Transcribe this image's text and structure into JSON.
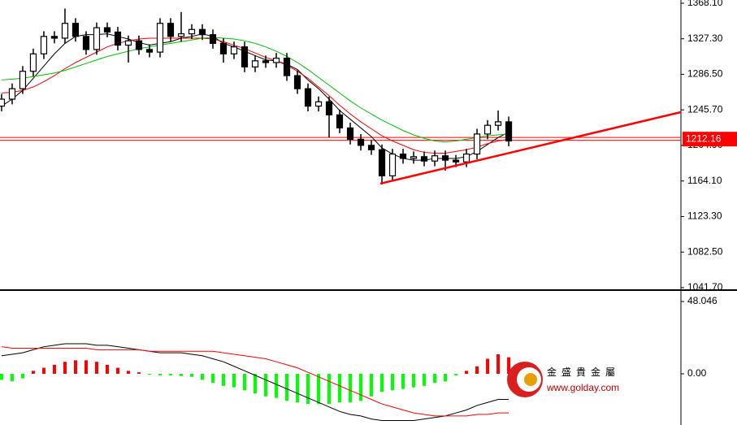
{
  "chart_data": [
    {
      "type": "candlestick",
      "ylim": [
        1039.8,
        1371.8
      ],
      "xlim": [
        -0.15,
        64.3
      ],
      "yticks": [
        {
          "value": 1368.1,
          "label": "1368.10"
        },
        {
          "value": 1327.3,
          "label": "1327.30"
        },
        {
          "value": 1286.5,
          "label": "1286.50"
        },
        {
          "value": 1245.7,
          "label": "1245.70"
        },
        {
          "value": 1204.9,
          "label": "1204.90"
        },
        {
          "value": 1164.1,
          "label": "1164.10"
        },
        {
          "value": 1123.3,
          "label": "1123.30"
        },
        {
          "value": 1082.5,
          "label": "1082.50"
        },
        {
          "value": 1041.7,
          "label": "1041.70"
        }
      ],
      "open": [
        1250,
        1258,
        1270,
        1290,
        1310,
        1330,
        1328,
        1345,
        1330,
        1315,
        1340,
        1335,
        1320,
        1325,
        1315,
        1312,
        1345,
        1330,
        1333,
        1338,
        1332,
        1322,
        1310,
        1318,
        1295,
        1302,
        1300,
        1305,
        1285,
        1270,
        1250,
        1255,
        1240,
        1225,
        1212,
        1205,
        1200,
        1170,
        1195,
        1190,
        1192,
        1187,
        1193,
        1188,
        1186,
        1195,
        1218,
        1228,
        1232
      ],
      "high": [
        1264,
        1276,
        1296,
        1316,
        1336,
        1336,
        1362,
        1351,
        1336,
        1346,
        1346,
        1341,
        1331,
        1331,
        1321,
        1351,
        1351,
        1358,
        1344,
        1344,
        1338,
        1328,
        1324,
        1324,
        1308,
        1308,
        1311,
        1311,
        1291,
        1276,
        1261,
        1261,
        1246,
        1231,
        1218,
        1211,
        1206,
        1201,
        1201,
        1198,
        1198,
        1199,
        1199,
        1194,
        1201,
        1224,
        1234,
        1245,
        1238
      ],
      "low": [
        1244,
        1252,
        1264,
        1284,
        1304,
        1322,
        1322,
        1324,
        1309,
        1309,
        1329,
        1314,
        1300,
        1309,
        1306,
        1306,
        1324,
        1324,
        1327,
        1326,
        1316,
        1300,
        1304,
        1289,
        1289,
        1294,
        1294,
        1279,
        1264,
        1244,
        1244,
        1214,
        1219,
        1206,
        1199,
        1194,
        1160,
        1164,
        1184,
        1184,
        1181,
        1181,
        1176,
        1180,
        1180,
        1189,
        1212,
        1222,
        1204
      ],
      "close": [
        1258,
        1270,
        1290,
        1310,
        1330,
        1328,
        1345,
        1330,
        1315,
        1340,
        1335,
        1320,
        1325,
        1315,
        1312,
        1345,
        1330,
        1333,
        1338,
        1332,
        1322,
        1310,
        1318,
        1295,
        1302,
        1300,
        1305,
        1285,
        1270,
        1250,
        1255,
        1240,
        1225,
        1212,
        1205,
        1200,
        1170,
        1195,
        1190,
        1192,
        1187,
        1193,
        1188,
        1186,
        1195,
        1218,
        1228,
        1232,
        1210
      ],
      "series": [
        {
          "color": "#000000",
          "values": [
            1250,
            1258,
            1268,
            1282,
            1296,
            1310,
            1322,
            1330,
            1332,
            1332,
            1333,
            1330,
            1327,
            1323,
            1320,
            1322,
            1324,
            1328,
            1330,
            1333,
            1330,
            1322,
            1318,
            1313,
            1308,
            1303,
            1302,
            1298,
            1292,
            1280,
            1270,
            1258,
            1245,
            1235,
            1225,
            1215,
            1202,
            1195,
            1190,
            1188,
            1188,
            1190,
            1190,
            1190,
            1192,
            1198,
            1206,
            1214,
            1220
          ]
        },
        {
          "color": "#ff0000",
          "values": [
            1265,
            1266,
            1268,
            1272,
            1278,
            1285,
            1293,
            1300,
            1306,
            1312,
            1318,
            1322,
            1325,
            1327,
            1328,
            1328,
            1328,
            1328,
            1328,
            1328,
            1327,
            1324,
            1320,
            1316,
            1311,
            1306,
            1302,
            1297,
            1290,
            1282,
            1272,
            1262,
            1251,
            1241,
            1232,
            1224,
            1216,
            1210,
            1205,
            1200,
            1197,
            1196,
            1196,
            1198,
            1200,
            1203,
            1207,
            1210,
            1212
          ]
        },
        {
          "color": "#00c000",
          "values": [
            1280,
            1281,
            1282,
            1284,
            1286,
            1288,
            1291,
            1295,
            1299,
            1303,
            1307,
            1310,
            1313,
            1316,
            1318,
            1320,
            1322,
            1324,
            1326,
            1328,
            1329,
            1328,
            1327,
            1325,
            1322,
            1318,
            1313,
            1307,
            1300,
            1292,
            1283,
            1274,
            1265,
            1256,
            1248,
            1241,
            1234,
            1228,
            1222,
            1217,
            1213,
            1210,
            1209,
            1210,
            1212,
            1214,
            1216,
            1217,
            1218
          ]
        }
      ],
      "trendline": {
        "color": "#ff0000",
        "x": [
          35.85,
          64.3
        ],
        "y": [
          1161.1,
          1243.1
        ]
      },
      "price_line": {
        "value": 1212.16,
        "label": "1212.16",
        "color": "#ff0000"
      }
    },
    {
      "type": "macd",
      "ylim": [
        -34,
        54
      ],
      "xlim": [
        -0.15,
        64.3
      ],
      "yticks": [
        48.046,
        {
          "value": 0,
          "label": "0.00"
        }
      ],
      "histogram": {
        "up_color": "#ff0000",
        "down_color": "#00ff00",
        "values": [
          -4,
          -5,
          -3,
          2,
          4,
          6,
          8,
          9,
          9,
          8,
          6,
          4,
          2,
          1,
          -0.5,
          -1,
          -1,
          -1.5,
          -2,
          -4,
          -6,
          -8,
          -9,
          -11,
          -13,
          -15,
          -16,
          -18,
          -19,
          -20,
          -20,
          -20,
          -19,
          -19,
          -18,
          -15,
          -12,
          -11,
          -10,
          -9,
          -8,
          -6,
          -5,
          -1,
          2,
          5,
          10,
          13,
          11
        ]
      },
      "series": [
        {
          "color": "#000000",
          "values": [
            12,
            13,
            14,
            16,
            18,
            19,
            20,
            20,
            20,
            19,
            19,
            18,
            17,
            16,
            15,
            14,
            14,
            14,
            13,
            12,
            10,
            8,
            5,
            2,
            -1,
            -4,
            -7,
            -10,
            -13,
            -16,
            -19,
            -22,
            -25,
            -27,
            -28,
            -30,
            -31,
            -31,
            -31,
            -31,
            -30,
            -29,
            -28,
            -26,
            -24,
            -21,
            -19,
            -17,
            -17
          ]
        },
        {
          "color": "#ff0000",
          "values": [
            18,
            17,
            17,
            17,
            17,
            17,
            17,
            17,
            17,
            16,
            16,
            16,
            16,
            16,
            15,
            15,
            15,
            15,
            15,
            15,
            15,
            14,
            13,
            12,
            11,
            10,
            8,
            6,
            4,
            1,
            -2,
            -5,
            -8,
            -11,
            -14,
            -17,
            -20,
            -22,
            -24,
            -26,
            -27,
            -28,
            -28,
            -28,
            -28,
            -27,
            -27,
            -26,
            -26
          ]
        }
      ]
    }
  ],
  "brand": {
    "name": "金盛貴金屬",
    "url": "www.golday.com"
  }
}
